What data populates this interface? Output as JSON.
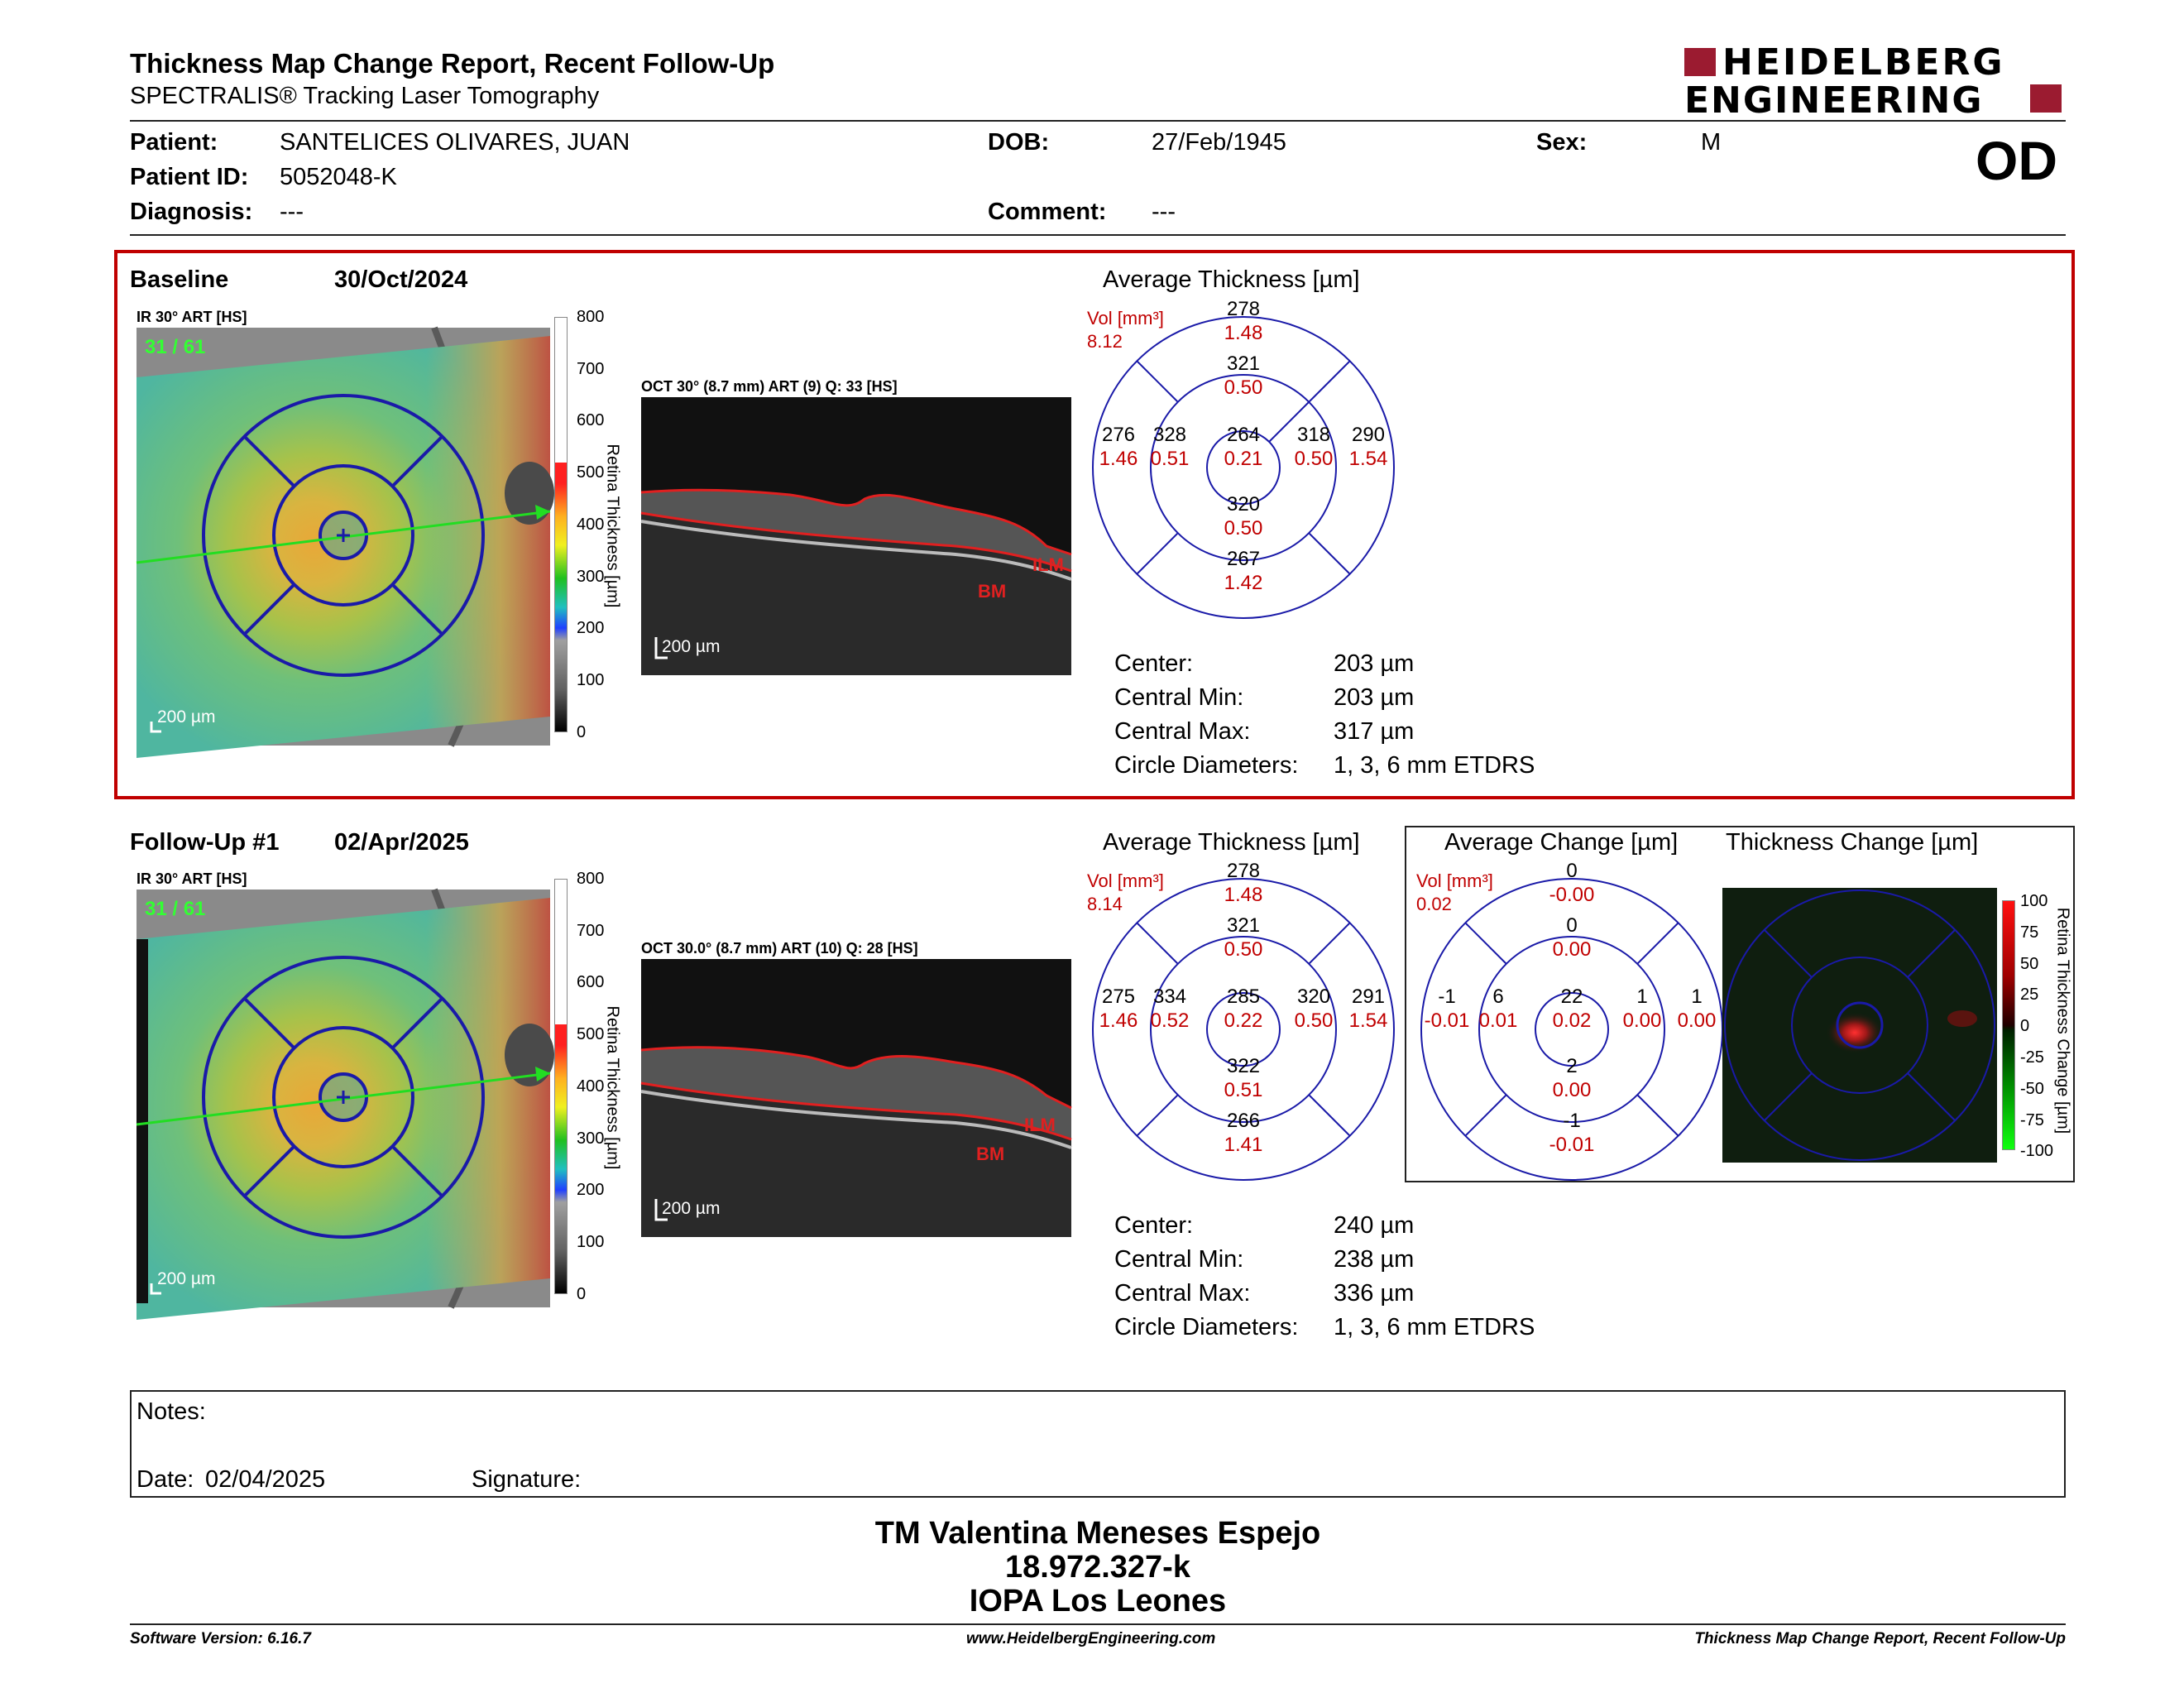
{
  "header": {
    "title": "Thickness Map Change Report, Recent Follow-Up",
    "subtitle": "SPECTRALIS® Tracking Laser Tomography",
    "logo_line1": "HEIDELBERG",
    "logo_line2": "ENGINEERING",
    "eye": "OD"
  },
  "patient": {
    "name_label": "Patient:",
    "name": "SANTELICES OLIVARES, JUAN",
    "id_label": "Patient ID:",
    "id": "5052048-K",
    "diagnosis_label": "Diagnosis:",
    "diagnosis": "---",
    "dob_label": "DOB:",
    "dob": "27/Feb/1945",
    "comment_label": "Comment:",
    "comment": "---",
    "sex_label": "Sex:",
    "sex": "M"
  },
  "colors": {
    "accent_red": "#c00000",
    "grid_blue": "#1a1aa8"
  },
  "baseline": {
    "label": "Baseline",
    "date": "30/Oct/2024",
    "fundus_label": "IR 30° ART [HS]",
    "frames": "31 / 61",
    "scalebar": "200 µm",
    "colorbar_title": "Retina Thickness [µm]",
    "colorbar_ticks": [
      "800",
      "700",
      "600",
      "500",
      "400",
      "300",
      "200",
      "100",
      "0"
    ],
    "oct_label": "OCT 30° (8.7 mm) ART (9) Q: 33 [HS]",
    "oct_scalebar": "200 µm",
    "ilm": "ILM",
    "bm": "BM",
    "avg_title": "Average Thickness [µm]",
    "vol_label": "Vol [mm³]",
    "vol_value": "8.12",
    "grid": {
      "outer_top": [
        "278",
        "1.48"
      ],
      "inner_top": [
        "321",
        "0.50"
      ],
      "outer_left": [
        "276",
        "1.46"
      ],
      "inner_left": [
        "328",
        "0.51"
      ],
      "center": [
        "264",
        "0.21"
      ],
      "inner_right": [
        "318",
        "0.50"
      ],
      "outer_right": [
        "290",
        "1.54"
      ],
      "inner_bottom": [
        "320",
        "0.50"
      ],
      "outer_bottom": [
        "267",
        "1.42"
      ]
    },
    "stats": [
      {
        "label": "Center:",
        "value": "203 µm"
      },
      {
        "label": "Central Min:",
        "value": "203 µm"
      },
      {
        "label": "Central Max:",
        "value": "317 µm"
      },
      {
        "label": "Circle Diameters:",
        "value": "1, 3, 6 mm ETDRS"
      }
    ]
  },
  "followup": {
    "label": "Follow-Up #1",
    "date": "02/Apr/2025",
    "fundus_label": "IR 30° ART [HS]",
    "frames": "31 / 61",
    "scalebar": "200 µm",
    "colorbar_title": "Retina Thickness [µm]",
    "colorbar_ticks": [
      "800",
      "700",
      "600",
      "500",
      "400",
      "300",
      "200",
      "100",
      "0"
    ],
    "oct_label": "OCT 30.0° (8.7 mm) ART (10) Q: 28 [HS]",
    "oct_scalebar": "200 µm",
    "ilm": "ILM",
    "bm": "BM",
    "avg_title": "Average Thickness [µm]",
    "vol_label": "Vol [mm³]",
    "vol_value": "8.14",
    "grid": {
      "outer_top": [
        "278",
        "1.48"
      ],
      "inner_top": [
        "321",
        "0.50"
      ],
      "outer_left": [
        "275",
        "1.46"
      ],
      "inner_left": [
        "334",
        "0.52"
      ],
      "center": [
        "285",
        "0.22"
      ],
      "inner_right": [
        "320",
        "0.50"
      ],
      "outer_right": [
        "291",
        "1.54"
      ],
      "inner_bottom": [
        "322",
        "0.51"
      ],
      "outer_bottom": [
        "266",
        "1.41"
      ]
    },
    "stats": [
      {
        "label": "Center:",
        "value": "240 µm"
      },
      {
        "label": "Central Min:",
        "value": "238 µm"
      },
      {
        "label": "Central Max:",
        "value": "336 µm"
      },
      {
        "label": "Circle Diameters:",
        "value": "1, 3, 6 mm ETDRS"
      }
    ],
    "change_title": "Average Change [µm]",
    "change_vol_label": "Vol [mm³]",
    "change_vol_value": "0.02",
    "change_grid": {
      "outer_top": [
        "0",
        "-0.00"
      ],
      "inner_top": [
        "0",
        "0.00"
      ],
      "outer_left": [
        "-1",
        "-0.01"
      ],
      "inner_left": [
        "6",
        "0.01"
      ],
      "center": [
        "22",
        "0.02"
      ],
      "inner_right": [
        "1",
        "0.00"
      ],
      "outer_right": [
        "1",
        "0.00"
      ],
      "inner_bottom": [
        "2",
        "0.00"
      ],
      "outer_bottom": [
        "-1",
        "-0.01"
      ]
    },
    "tchange_title": "Thickness Change [µm]",
    "tchange_bar_title": "Retina Thickness Change [µm]",
    "tchange_ticks": [
      "100",
      "75",
      "50",
      "25",
      "0",
      "-25",
      "-50",
      "-75",
      "-100"
    ]
  },
  "notes": {
    "label": "Notes:",
    "date_label": "Date:",
    "date": "02/04/2025",
    "signature_label": "Signature:"
  },
  "signoff": {
    "line1": "TM Valentina Meneses Espejo",
    "line2": "18.972.327-k",
    "line3": "IOPA Los Leones"
  },
  "footer": {
    "left": "Software Version: 6.16.7",
    "center": "www.HeidelbergEngineering.com",
    "right": "Thickness Map Change Report, Recent Follow-Up"
  }
}
